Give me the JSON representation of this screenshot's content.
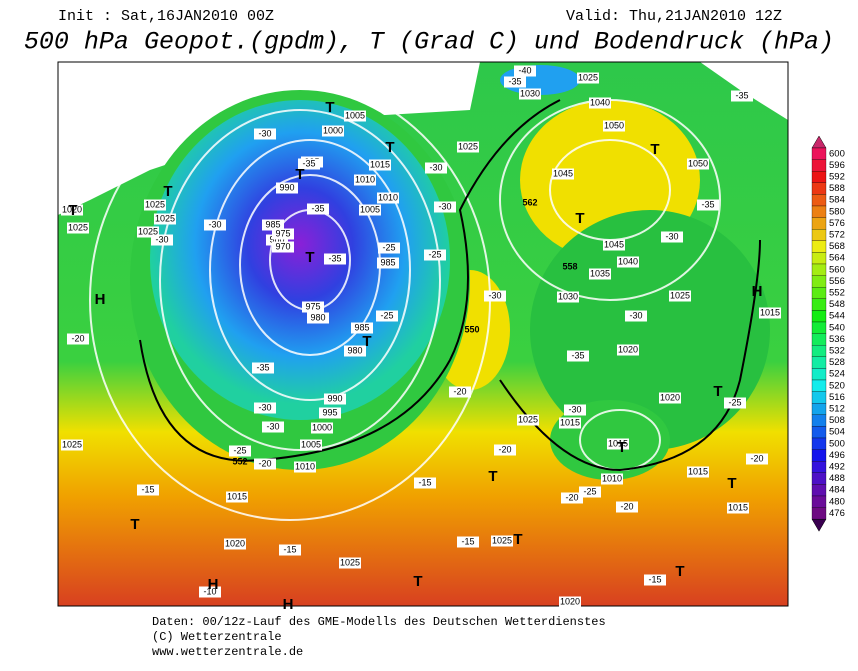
{
  "header": {
    "init": "Init : Sat,16JAN2010 00Z",
    "valid": "Valid: Thu,21JAN2010 12Z",
    "title": "500 hPa Geopot.(gpdm), T (Grad C) und Bodendruck (hPa)"
  },
  "colorbar": {
    "labels": [
      600,
      596,
      592,
      588,
      584,
      580,
      576,
      572,
      568,
      564,
      560,
      556,
      552,
      548,
      544,
      540,
      536,
      532,
      528,
      524,
      520,
      516,
      512,
      508,
      504,
      500,
      496,
      492,
      488,
      484,
      480,
      476
    ]
  },
  "map": {
    "pressure_labels": [
      1025,
      1020,
      1025,
      1025,
      1025,
      1005,
      1000,
      995,
      990,
      985,
      980,
      975,
      970,
      985,
      975,
      980,
      985,
      980,
      990,
      995,
      1000,
      1005,
      1010,
      1015,
      1020,
      1025,
      1025,
      1015,
      1010,
      1010,
      1005,
      1025,
      1030,
      1025,
      1040,
      1050,
      1050,
      1045,
      1045,
      1040,
      1035,
      1030,
      1025,
      1020,
      1020,
      1025,
      1015,
      1015,
      1010,
      1015,
      1015,
      1015,
      1020,
      1025
    ],
    "temperature_labels": [
      "-30",
      "-35",
      "-35",
      "-30",
      "-30",
      "-25",
      "-35",
      "-30",
      "-30",
      "-25",
      "-25",
      "-35",
      "-30",
      "-30",
      "-25",
      "-20",
      "-20",
      "-15",
      "-15",
      "-15",
      "-15",
      "-10",
      "-20",
      "-20",
      "-20",
      "-25",
      "-20",
      "-30",
      "-35",
      "-30",
      "-30",
      "-30",
      "-35",
      "-35",
      "-25",
      "-20",
      "-15",
      "-40",
      "-35"
    ],
    "height_labels": [
      "552",
      "562",
      "558",
      "550"
    ],
    "highs": [
      "H",
      "H",
      "H",
      "H"
    ],
    "lows": [
      "T",
      "T",
      "T",
      "T",
      "T",
      "T",
      "T",
      "T",
      "T",
      "T",
      "T",
      "T",
      "T",
      "T",
      "T",
      "T",
      "T"
    ]
  },
  "footer": {
    "lines": [
      "Daten: 00/12z-Lauf des GME-Modells des Deutschen Wetterdienstes",
      "(C) Wetterzentrale",
      "www.wetterzentrale.de"
    ]
  }
}
